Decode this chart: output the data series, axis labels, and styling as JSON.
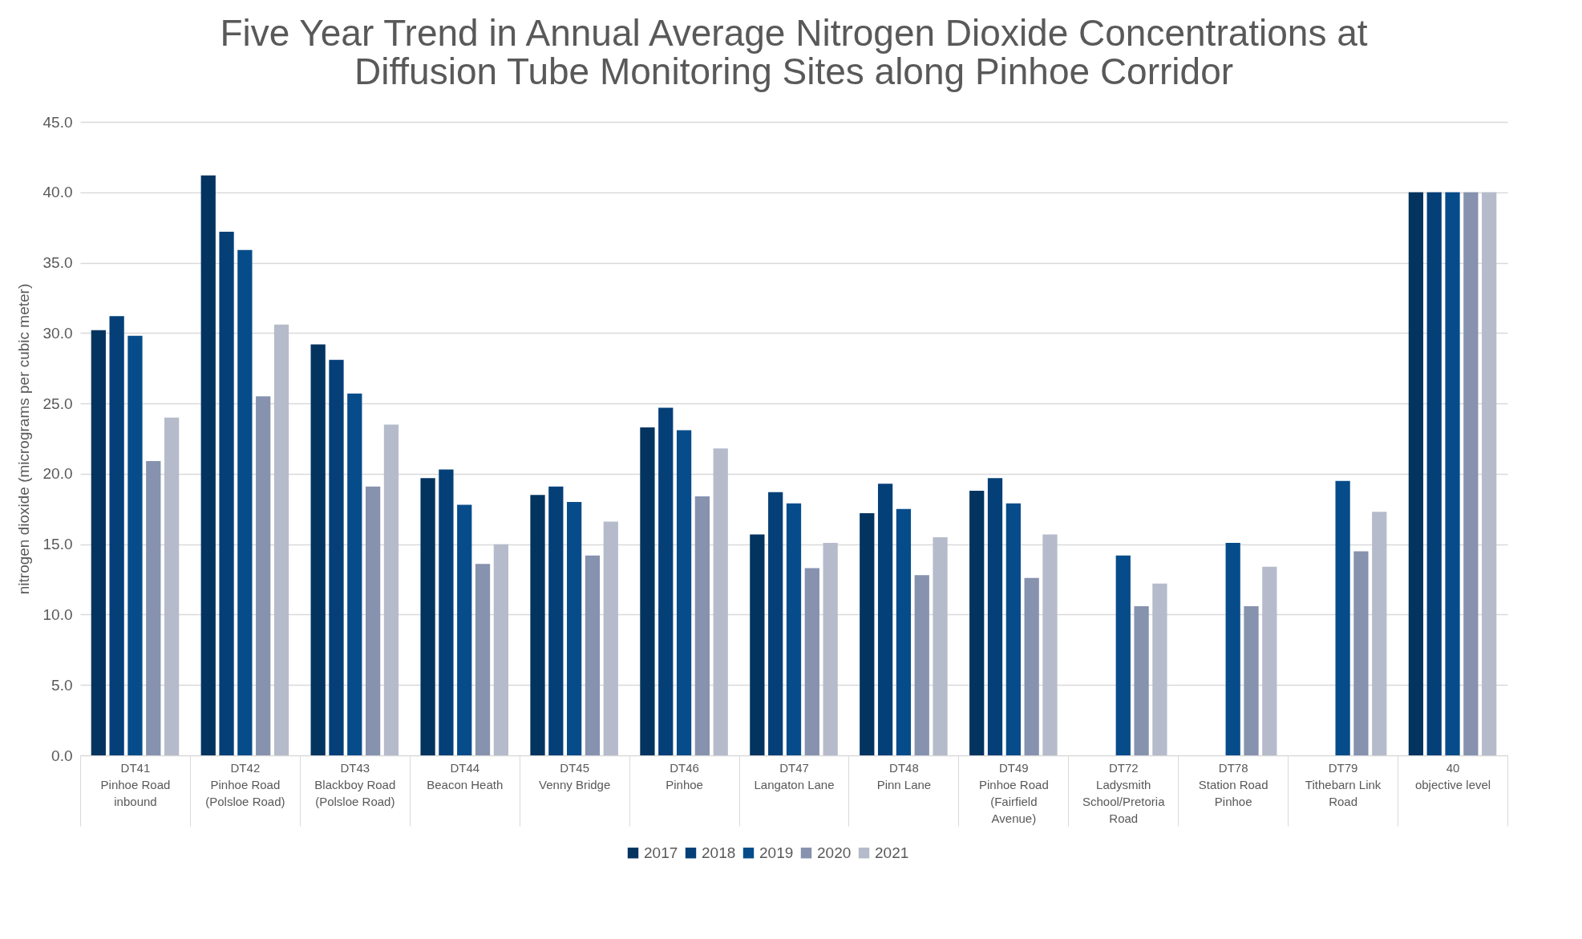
{
  "chart_data": {
    "type": "bar",
    "title": "Five Year Trend in Annual Average Nitrogen Dioxide Concentrations at\nDiffusion Tube Monitoring Sites along Pinhoe Corridor",
    "ylabel": "nitrogen dioxide (micrograms per cubic meter)",
    "categories": [
      "DT41\nPinhoe Road\ninbound",
      "DT42\nPinhoe Road\n(Polsloe Road)",
      "DT43\nBlackboy Road\n(Polsloe Road)",
      "DT44\nBeacon Heath",
      "DT45\nVenny Bridge",
      "DT46\nPinhoe",
      "DT47\nLangaton Lane",
      "DT48\nPinn Lane",
      "DT49\nPinhoe Road\n(Fairfield\nAvenue)",
      "DT72\nLadysmith\nSchool/Pretoria\nRoad",
      "DT78\nStation Road\nPinhoe",
      "DT79\nTithebarn Link\nRoad",
      "40\nobjective level"
    ],
    "series": [
      {
        "name": "2017",
        "color": "#03345f",
        "values": [
          30.2,
          41.2,
          29.2,
          19.7,
          18.5,
          23.3,
          15.7,
          17.2,
          18.8,
          null,
          null,
          null,
          40
        ]
      },
      {
        "name": "2018",
        "color": "#053f78",
        "values": [
          31.2,
          37.2,
          28.1,
          20.3,
          19.1,
          24.7,
          18.7,
          19.3,
          19.7,
          null,
          null,
          null,
          40
        ]
      },
      {
        "name": "2019",
        "color": "#074c8a",
        "values": [
          29.8,
          35.9,
          25.7,
          17.8,
          18.0,
          23.1,
          17.9,
          17.5,
          17.9,
          14.2,
          15.1,
          19.5,
          40
        ]
      },
      {
        "name": "2020",
        "color": "#8692ae",
        "values": [
          20.9,
          25.5,
          19.1,
          13.6,
          14.2,
          18.4,
          13.3,
          12.8,
          12.6,
          10.6,
          10.6,
          14.5,
          40
        ]
      },
      {
        "name": "2021",
        "color": "#b6bbcb",
        "values": [
          24.0,
          30.6,
          23.5,
          15.0,
          16.6,
          21.8,
          15.1,
          15.5,
          15.7,
          12.2,
          13.4,
          17.3,
          40
        ]
      }
    ],
    "ylim": [
      0,
      45
    ],
    "yticks": [
      {
        "value": 0,
        "label": "0.0"
      },
      {
        "value": 5,
        "label": "5.0"
      },
      {
        "value": 10,
        "label": "10.0"
      },
      {
        "value": 15,
        "label": "15.0"
      },
      {
        "value": 20,
        "label": "20.0"
      },
      {
        "value": 25,
        "label": "25.0"
      },
      {
        "value": 30,
        "label": "30.0"
      },
      {
        "value": 35,
        "label": "35.0"
      },
      {
        "value": 40,
        "label": "40.0"
      },
      {
        "value": 45,
        "label": "45.0"
      }
    ],
    "grid": "y",
    "legend": "bottom"
  }
}
